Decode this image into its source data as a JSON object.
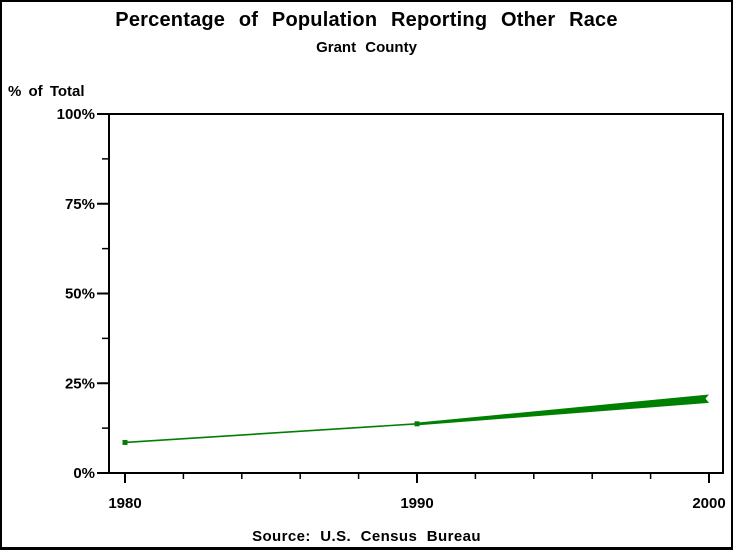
{
  "page": {
    "background": "#ffffff",
    "border_color": "#000000"
  },
  "header": {
    "title": "Percentage of Population Reporting Other Race",
    "subtitle": "Grant County"
  },
  "axes": {
    "y_axis_title": "% of Total"
  },
  "footer": {
    "source_note": "Source: U.S. Census Bureau"
  },
  "chart_data": {
    "type": "line",
    "title": "Percentage of Population Reporting Other Race",
    "subtitle": "Grant County",
    "xlabel": "",
    "ylabel": "% of Total",
    "x": [
      1980,
      1990,
      2000
    ],
    "x_tick_labels": [
      "1980",
      "1990",
      "2000"
    ],
    "values": [
      8.5,
      13.7,
      20.7
    ],
    "xlim": [
      1980,
      2000
    ],
    "ylim": [
      0,
      100
    ],
    "y_tick_values": [
      0,
      25,
      50,
      75,
      100
    ],
    "y_tick_labels": [
      "0%",
      "25%",
      "50%",
      "75%",
      "100%"
    ],
    "y_minor_tick_values": [
      12.5,
      37.5,
      62.5,
      87.5
    ],
    "x_minor_step_years": 2,
    "grid": false,
    "legend": "none",
    "frame": "boxed plot area",
    "line_color": "#008000",
    "line_style": "single green line tapering from thin at 1980 to thick at 2000, small square markers at 1980 and 1990",
    "footnote": "Source: U.S. Census Bureau"
  }
}
